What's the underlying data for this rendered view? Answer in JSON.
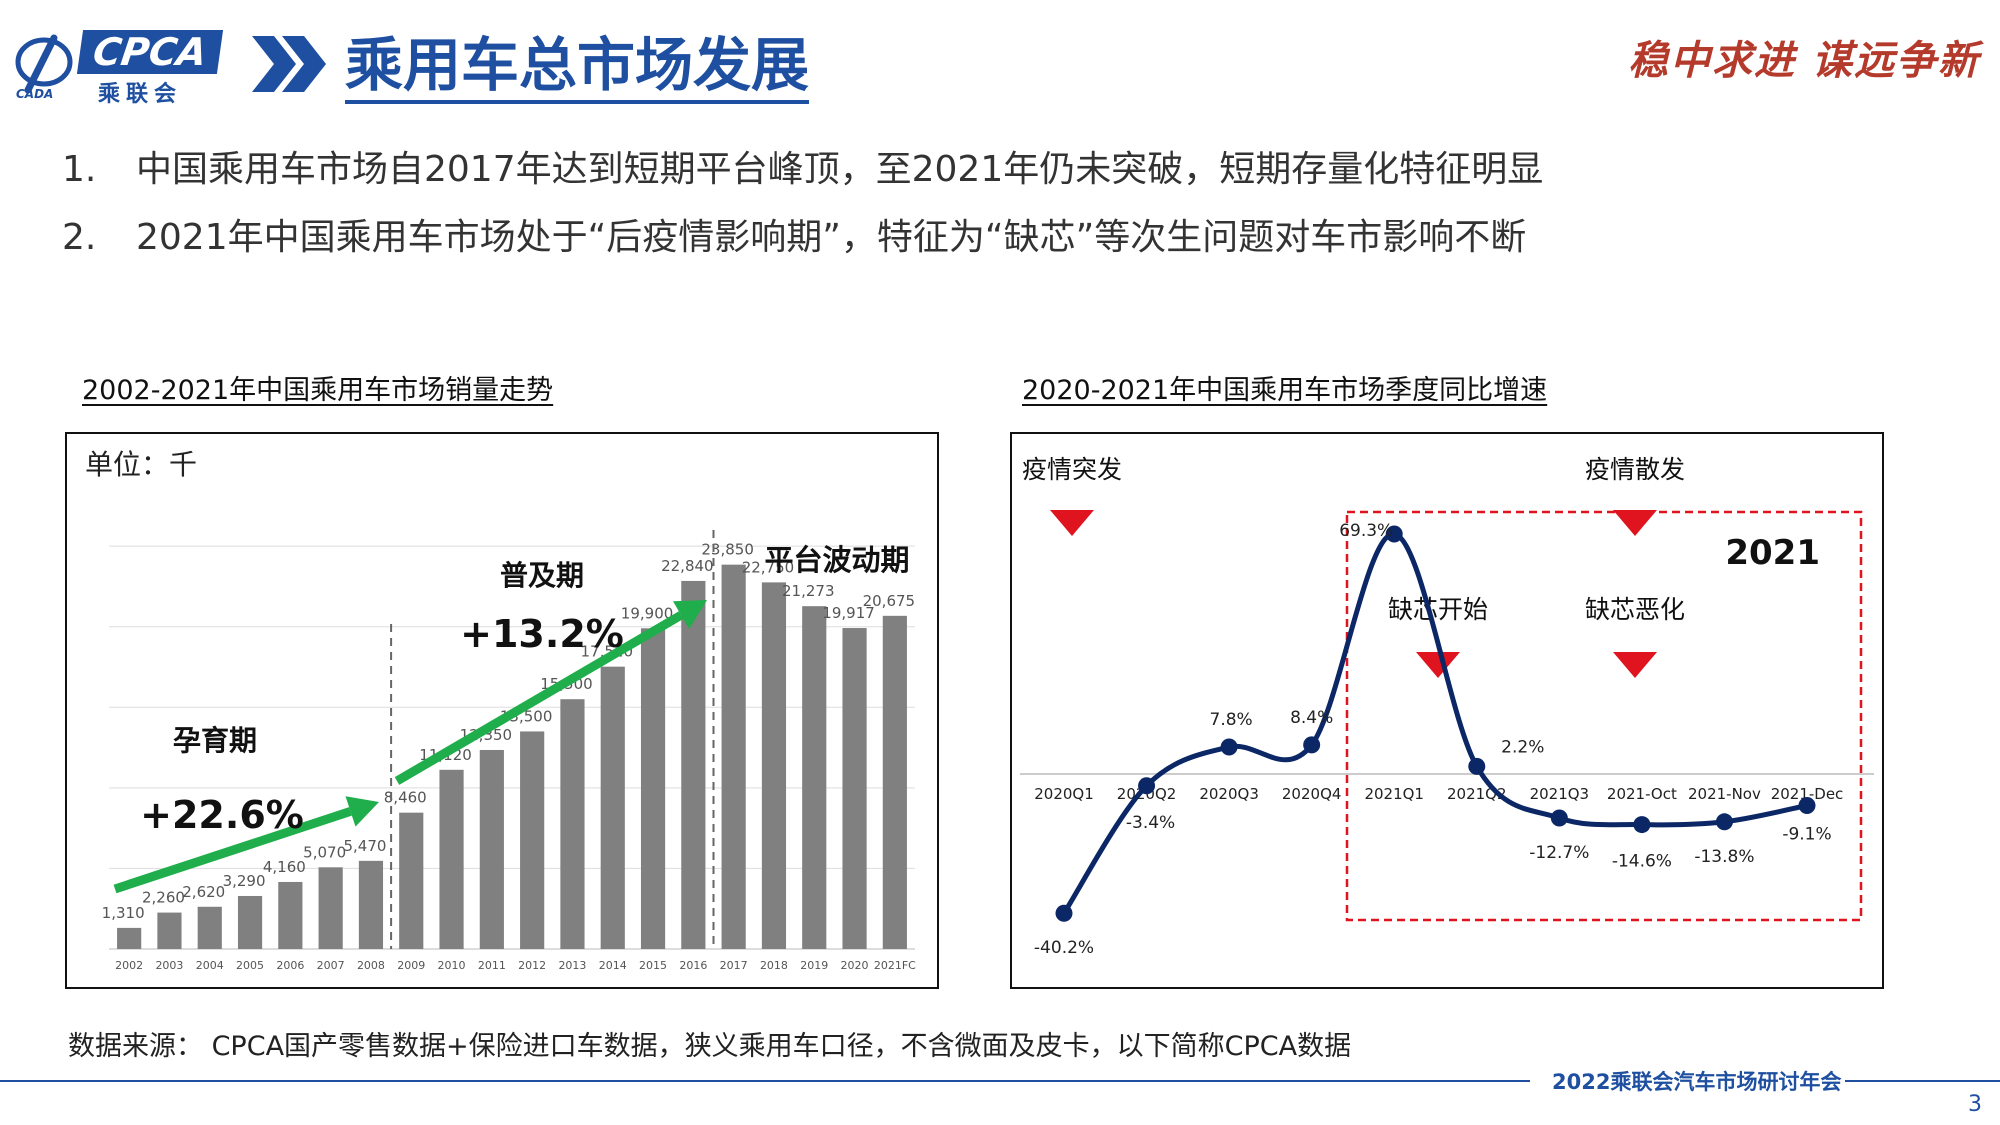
{
  "header": {
    "logo_text": "CPCA",
    "logo_sub": "乘联会",
    "title": "乘用车总市场发展",
    "slogan": "稳中求进  谋远争新"
  },
  "bullets": [
    {
      "num": "1.",
      "text": "中国乘用车市场自2017年达到短期平台峰顶，至2021年仍未突破，短期存量化特征明显"
    },
    {
      "num": "2.",
      "text": "2021年中国乘用车市场处于“后疫情影响期”，特征为“缺芯”等次生问题对车市影响不断"
    }
  ],
  "colors": {
    "brand": "#1e4fa0",
    "bar": "#808080",
    "arrow": "#1fae4b",
    "line": "#0b2766",
    "marker_red": "#e0141e",
    "box_red": "#e0141e"
  },
  "chart_data": [
    {
      "type": "bar",
      "title": "2002-2021年中国乘用车市场销量走势",
      "unit_label": "单位：千",
      "categories": [
        "2002",
        "2003",
        "2004",
        "2005",
        "2006",
        "2007",
        "2008",
        "2009",
        "2010",
        "2011",
        "2012",
        "2013",
        "2014",
        "2015",
        "2016",
        "2017",
        "2018",
        "2019",
        "2020",
        "2021FC"
      ],
      "values": [
        1310,
        2260,
        2620,
        3290,
        4160,
        5070,
        5470,
        8460,
        11120,
        12350,
        13500,
        15500,
        17520,
        19900,
        22840,
        23850,
        22750,
        21273,
        19917,
        20675
      ],
      "value_labels": [
        "1,310",
        "2,260",
        "2,620",
        "3,290",
        "4,160",
        "5,070",
        "5,470",
        "8,460",
        "11,120",
        "12,350",
        "13,500",
        "15,500",
        "17,520",
        "19,900",
        "22,840",
        "23,850",
        "22,750",
        "21,273",
        "19,917",
        "20,675"
      ],
      "ylim": [
        0,
        26000
      ],
      "grid": true,
      "phases": [
        {
          "name": "孕育期",
          "growth": "+22.6%"
        },
        {
          "name": "普及期",
          "growth": "+13.2%"
        },
        {
          "name": "平台波动期",
          "growth": ""
        }
      ]
    },
    {
      "type": "line",
      "title": "2020-2021年中国乘用车市场季度同比增速",
      "categories": [
        "2020Q1",
        "2020Q2",
        "2020Q3",
        "2020Q4",
        "2021Q1",
        "2021Q2",
        "2021Q3",
        "2021-Oct",
        "2021-Nov",
        "2021-Dec"
      ],
      "values": [
        -40.2,
        -3.4,
        7.8,
        8.4,
        69.3,
        2.2,
        -12.7,
        -14.6,
        -13.8,
        -9.1
      ],
      "value_labels": [
        "-40.2%",
        "-3.4%",
        "7.8%",
        "8.4%",
        "69.3%",
        "2.2%",
        "-12.7%",
        "-14.6%",
        "-13.8%",
        "-9.1%"
      ],
      "ylim": [
        -50,
        80
      ],
      "grid": false,
      "annotations": [
        "疫情突发",
        "疫情散发",
        "缺芯开始",
        "缺芯恶化"
      ],
      "highlight_box_label": "2021"
    }
  ],
  "source_note": "数据来源： CPCA国产零售数据+保险进口车数据，狭义乘用车口径，不含微面及皮卡，以下简称CPCA数据",
  "footer": {
    "event": "2022乘联会汽车市场研讨年会",
    "page": "3"
  }
}
